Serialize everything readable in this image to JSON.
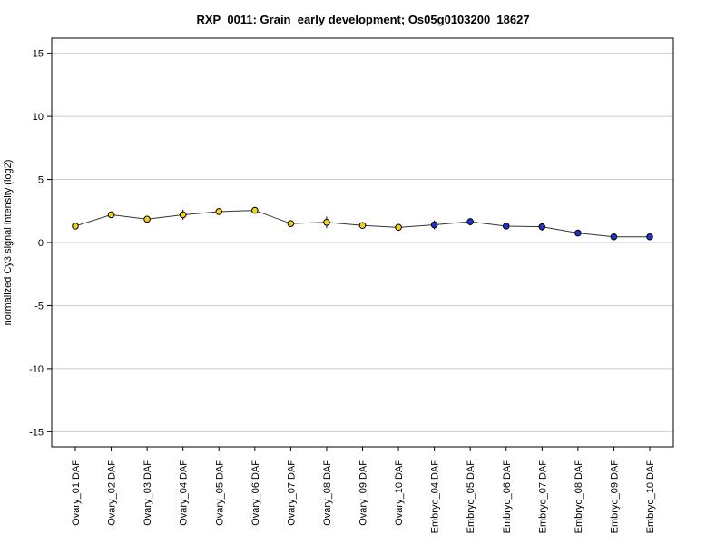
{
  "chart_data": {
    "type": "line",
    "title": "RXP_0011: Grain_early development; Os05g0103200_18627",
    "xlabel": "",
    "ylabel": "normalized Cy3 signal intensity (log2)",
    "ylim": [
      -16.2,
      16.2
    ],
    "yticks": [
      -15,
      -10,
      -5,
      0,
      5,
      10,
      15
    ],
    "grid": true,
    "categories": [
      "Ovary_01 DAF",
      "Ovary_02 DAF",
      "Ovary_03 DAF",
      "Ovary_04 DAF",
      "Ovary_05 DAF",
      "Ovary_06 DAF",
      "Ovary_07 DAF",
      "Ovary_08 DAF",
      "Ovary_09 DAF",
      "Ovary_10 DAF",
      "Embryo_04 DAF",
      "Embryo_05 DAF",
      "Embryo_06 DAF",
      "Embryo_07 DAF",
      "Embryo_08 DAF",
      "Embryo_09 DAF",
      "Embryo_10 DAF"
    ],
    "values": [
      1.3,
      2.2,
      1.85,
      2.2,
      2.45,
      2.55,
      1.5,
      1.6,
      1.35,
      1.2,
      1.4,
      1.65,
      1.3,
      1.25,
      0.75,
      0.45,
      0.45
    ],
    "errors": [
      0.1,
      0.15,
      0.1,
      0.4,
      0.1,
      0.1,
      0.15,
      0.45,
      0.15,
      0.15,
      0.35,
      0.3,
      0.1,
      0.3,
      0.1,
      0.05,
      0.05
    ],
    "point_colors": [
      "#f2d21b",
      "#f2d21b",
      "#f2d21b",
      "#f2d21b",
      "#f2d21b",
      "#f2d21b",
      "#f2d21b",
      "#f2d21b",
      "#f2d21b",
      "#f2d21b",
      "#2233cc",
      "#2233cc",
      "#2233cc",
      "#2233cc",
      "#2233cc",
      "#2233cc",
      "#2233cc"
    ]
  }
}
